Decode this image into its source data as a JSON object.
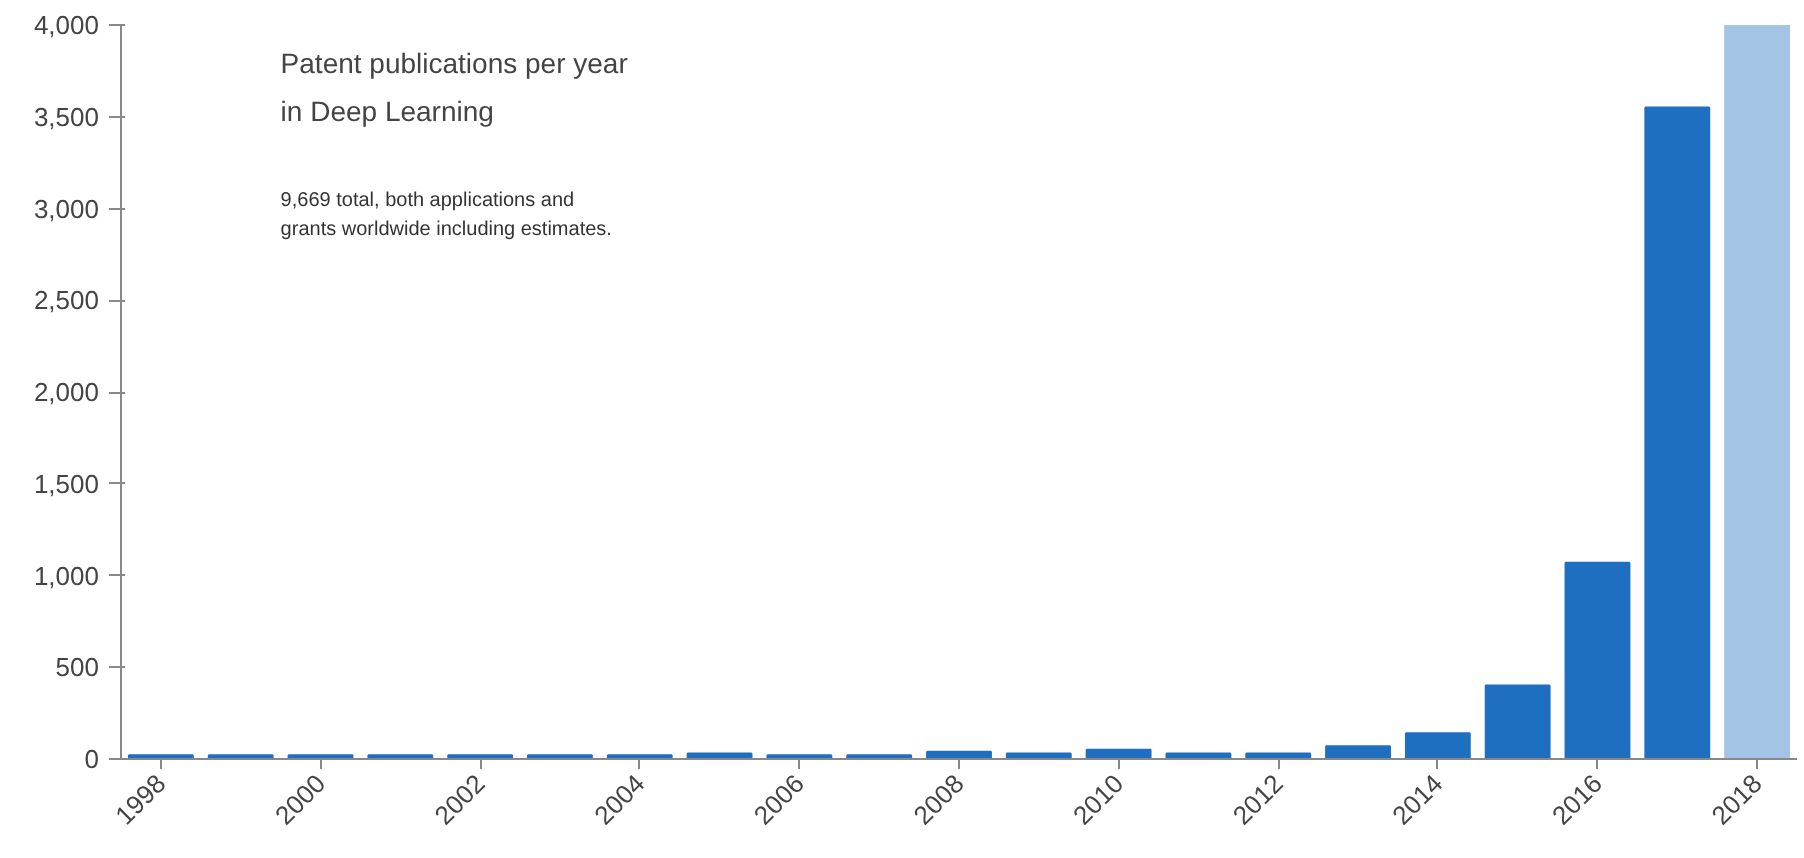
{
  "chart_data": {
    "type": "bar",
    "title": "Patent publications per year\nin Deep Learning",
    "subtitle": "9,669 total, both applications and\ngrants worldwide including estimates.",
    "x": [
      1998,
      1999,
      2000,
      2001,
      2002,
      2003,
      2004,
      2005,
      2006,
      2007,
      2008,
      2009,
      2010,
      2011,
      2012,
      2013,
      2014,
      2015,
      2016,
      2017,
      2018
    ],
    "values": [
      20,
      20,
      20,
      20,
      20,
      20,
      20,
      30,
      20,
      20,
      40,
      30,
      50,
      30,
      30,
      70,
      140,
      400,
      1070,
      3550,
      4000
    ],
    "colors": [
      "#1f6fc1",
      "#1f6fc1",
      "#1f6fc1",
      "#1f6fc1",
      "#1f6fc1",
      "#1f6fc1",
      "#1f6fc1",
      "#1f6fc1",
      "#1f6fc1",
      "#1f6fc1",
      "#1f6fc1",
      "#1f6fc1",
      "#1f6fc1",
      "#1f6fc1",
      "#1f6fc1",
      "#1f6fc1",
      "#1f6fc1",
      "#1f6fc1",
      "#1f6fc1",
      "#1f6fc1",
      "#a4c4e6"
    ],
    "xlim": [
      1997.5,
      2018.5
    ],
    "xticks": [
      1998,
      2000,
      2002,
      2004,
      2006,
      2008,
      2010,
      2012,
      2014,
      2016,
      2018
    ],
    "ylim": [
      0,
      4000
    ],
    "yticks": [
      0,
      {
        "value": 500,
        "label": "500"
      },
      {
        "value": 1000,
        "label": "1,000"
      },
      {
        "value": 1500,
        "label": "1,500"
      },
      {
        "value": 2000,
        "label": "2,000"
      },
      {
        "value": 2500,
        "label": "2,500"
      },
      {
        "value": 3000,
        "label": "3,000"
      },
      {
        "value": 3500,
        "label": "3,500"
      },
      {
        "value": 4000,
        "label": "4,000"
      }
    ],
    "grid": false
  }
}
